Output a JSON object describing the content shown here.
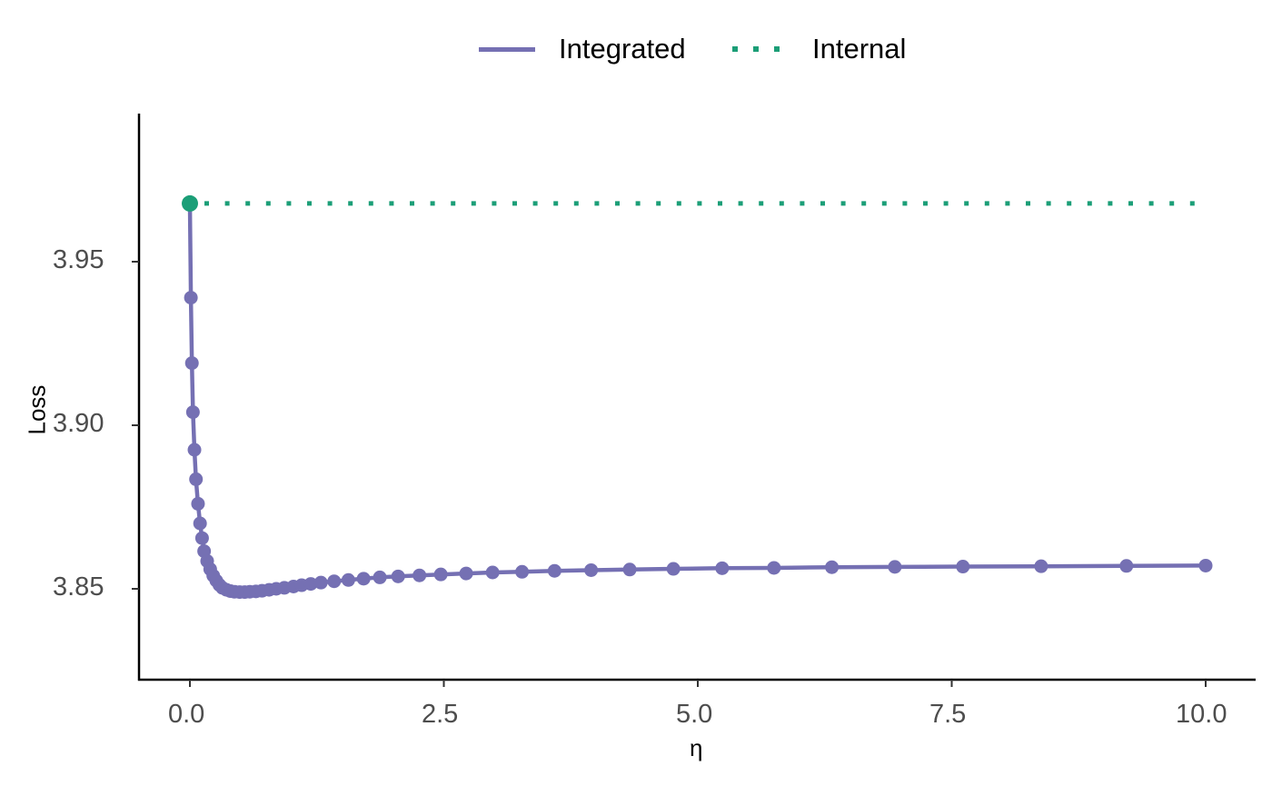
{
  "chart_data": {
    "type": "line",
    "title": "",
    "xlabel": "η",
    "ylabel": "Loss",
    "xlim": [
      -0.5,
      10.5
    ],
    "ylim": [
      3.822,
      3.995
    ],
    "xticks": [
      0.0,
      2.5,
      5.0,
      7.5,
      10.0
    ],
    "xtick_labels": [
      "0.0",
      "2.5",
      "5.0",
      "7.5",
      "10.0"
    ],
    "yticks": [
      3.85,
      3.9,
      3.95
    ],
    "ytick_labels": [
      "3.85",
      "3.90",
      "3.95"
    ],
    "grid": false,
    "legend_position": "top",
    "legend": [
      {
        "name": "Integrated",
        "style": "solid",
        "color": "#7570b3"
      },
      {
        "name": "Internal",
        "style": "dotted",
        "color": "#1b9e77"
      }
    ],
    "series": [
      {
        "name": "Integrated",
        "color": "#7570b3",
        "line": "solid",
        "markers": true,
        "x": [
          0.0,
          0.01,
          0.02,
          0.03,
          0.045,
          0.06,
          0.08,
          0.1,
          0.12,
          0.14,
          0.17,
          0.2,
          0.23,
          0.26,
          0.29,
          0.32,
          0.36,
          0.4,
          0.44,
          0.49,
          0.54,
          0.59,
          0.65,
          0.71,
          0.78,
          0.85,
          0.93,
          1.02,
          1.1,
          1.19,
          1.29,
          1.42,
          1.56,
          1.71,
          1.87,
          2.05,
          2.26,
          2.47,
          2.72,
          2.98,
          3.27,
          3.59,
          3.95,
          4.33,
          4.76,
          5.24,
          5.75,
          6.32,
          6.94,
          7.61,
          8.38,
          9.22,
          10.0
        ],
        "y": [
          3.9678,
          3.939,
          3.919,
          3.904,
          3.8925,
          3.8835,
          3.876,
          3.87,
          3.8655,
          3.8615,
          3.8585,
          3.856,
          3.854,
          3.8525,
          3.8512,
          3.8503,
          3.8497,
          3.8493,
          3.8491,
          3.849,
          3.849,
          3.8491,
          3.8492,
          3.8494,
          3.8497,
          3.85,
          3.8503,
          3.8507,
          3.8511,
          3.8515,
          3.8519,
          3.8523,
          3.8527,
          3.8531,
          3.8535,
          3.8538,
          3.8541,
          3.8544,
          3.8547,
          3.855,
          3.8552,
          3.8555,
          3.8557,
          3.8559,
          3.8561,
          3.8563,
          3.8564,
          3.8566,
          3.8567,
          3.8568,
          3.8569,
          3.857,
          3.8571
        ]
      },
      {
        "name": "Internal",
        "color": "#1b9e77",
        "line": "dotted",
        "markers": false,
        "x": [
          0.0,
          10.0
        ],
        "y": [
          3.9678,
          3.9678
        ]
      }
    ],
    "annotations": [
      {
        "type": "point",
        "x": 0.0,
        "y": 3.9678,
        "color": "#1b9e77",
        "note": "Internal loss marker at η = 0"
      }
    ]
  },
  "legend": {
    "integrated_label": "Integrated",
    "internal_label": "Internal"
  },
  "axes": {
    "x_title": "η",
    "y_title": "Loss",
    "x_ticks": [
      "0.0",
      "2.5",
      "5.0",
      "7.5",
      "10.0"
    ],
    "y_ticks": [
      "3.95",
      "3.90",
      "3.85"
    ]
  },
  "colors": {
    "integrated": "#7570b3",
    "internal": "#1b9e77",
    "axis": "#000000",
    "tick_text": "#4d4d4d"
  }
}
